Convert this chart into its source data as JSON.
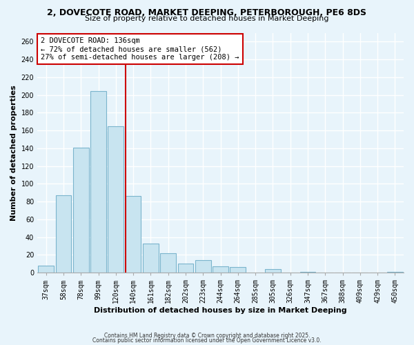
{
  "title": "2, DOVECOTE ROAD, MARKET DEEPING, PETERBOROUGH, PE6 8DS",
  "subtitle": "Size of property relative to detached houses in Market Deeping",
  "xlabel": "Distribution of detached houses by size in Market Deeping",
  "ylabel": "Number of detached properties",
  "bar_labels": [
    "37sqm",
    "58sqm",
    "78sqm",
    "99sqm",
    "120sqm",
    "140sqm",
    "161sqm",
    "182sqm",
    "202sqm",
    "223sqm",
    "244sqm",
    "264sqm",
    "285sqm",
    "305sqm",
    "326sqm",
    "347sqm",
    "367sqm",
    "388sqm",
    "409sqm",
    "429sqm",
    "450sqm"
  ],
  "bar_values": [
    8,
    87,
    141,
    204,
    165,
    86,
    33,
    22,
    10,
    14,
    7,
    6,
    0,
    4,
    0,
    1,
    0,
    0,
    0,
    0,
    1
  ],
  "bar_color": "#c8e4f0",
  "bar_edge_color": "#7ab4cc",
  "ylim": [
    0,
    270
  ],
  "yticks": [
    0,
    20,
    40,
    60,
    80,
    100,
    120,
    140,
    160,
    180,
    200,
    220,
    240,
    260
  ],
  "vline_color": "#cc0000",
  "annotation_title": "2 DOVECOTE ROAD: 136sqm",
  "annotation_line1": "← 72% of detached houses are smaller (562)",
  "annotation_line2": "27% of semi-detached houses are larger (208) →",
  "annotation_box_color": "#ffffff",
  "annotation_box_edge": "#cc0000",
  "footer1": "Contains HM Land Registry data © Crown copyright and database right 2025.",
  "footer2": "Contains public sector information licensed under the Open Government Licence v3.0.",
  "background_color": "#e8f4fb",
  "grid_color": "#ffffff",
  "title_fontsize": 9,
  "subtitle_fontsize": 8,
  "tick_fontsize": 7,
  "axis_label_fontsize": 8,
  "annotation_fontsize": 7.5,
  "footer_fontsize": 5.5
}
